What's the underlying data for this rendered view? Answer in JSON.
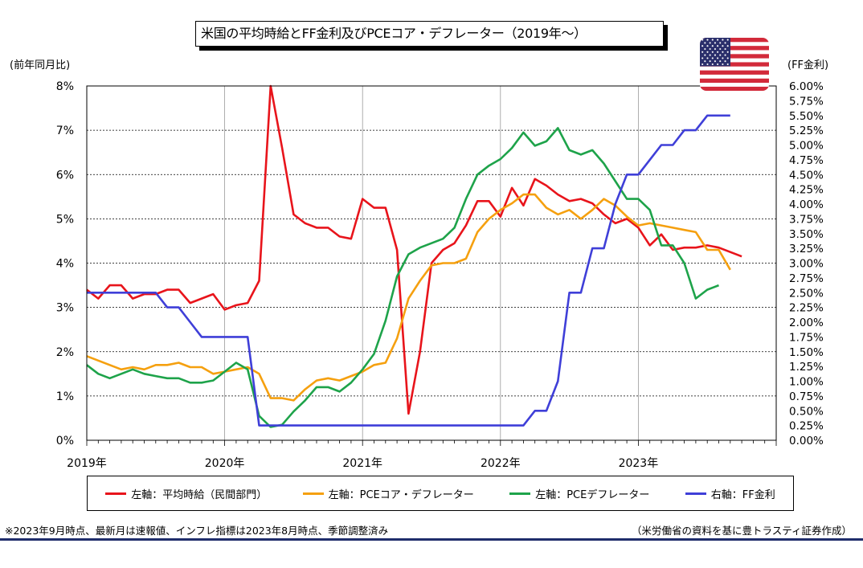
{
  "title": "米国の平均時給とFF金利及びPCEコア・デフレーター（2019年～）",
  "left_axis_unit": "(前年同月比)",
  "right_axis_unit": "(FF金利)",
  "flag_icon": "us-flag-icon",
  "footnote_left": "※2023年9月時点、最新月は速報値、インフレ指標は2023年8月時点、季節調整済み",
  "footnote_right": "（米労働省の資料を基に豊トラスティ証券作成）",
  "chart_data": {
    "type": "line",
    "title": "米国の平均時給とFF金利及びPCEコア・デフレーター（2019年～）",
    "x_labels": [
      "2019年",
      "2020年",
      "2021年",
      "2022年",
      "2023年"
    ],
    "x_start": "2019-01",
    "x_months": 60,
    "grid": true,
    "legend_position": "bottom",
    "left_axis": {
      "label": "(前年同月比)",
      "min": 0,
      "max": 8,
      "step": 1,
      "tick_labels": [
        "0%",
        "1%",
        "2%",
        "3%",
        "4%",
        "5%",
        "6%",
        "7%",
        "8%"
      ]
    },
    "right_axis": {
      "label": "(FF金利)",
      "min": 0,
      "max": 6,
      "step": 0.25,
      "tick_labels": [
        "0.00%",
        "0.25%",
        "0.50%",
        "0.75%",
        "1.00%",
        "1.25%",
        "1.50%",
        "1.75%",
        "2.00%",
        "2.25%",
        "2.50%",
        "2.75%",
        "3.00%",
        "3.25%",
        "3.50%",
        "3.75%",
        "4.00%",
        "4.25%",
        "4.50%",
        "4.75%",
        "5.00%",
        "5.25%",
        "5.50%",
        "5.75%",
        "6.00%"
      ]
    },
    "series": [
      {
        "name": "左軸：平均時給（民間部門）",
        "axis": "left",
        "color": "#e8141b",
        "values": [
          3.4,
          3.2,
          3.5,
          3.5,
          3.2,
          3.3,
          3.3,
          3.4,
          3.4,
          3.1,
          3.2,
          3.3,
          2.95,
          3.05,
          3.1,
          3.6,
          8.0,
          6.6,
          5.1,
          4.9,
          4.8,
          4.8,
          4.6,
          4.55,
          5.45,
          5.25,
          5.25,
          4.3,
          0.6,
          2.0,
          4.0,
          4.3,
          4.45,
          4.85,
          5.4,
          5.4,
          5.05,
          5.7,
          5.3,
          5.9,
          5.75,
          5.55,
          5.4,
          5.45,
          5.35,
          5.1,
          4.9,
          5.0,
          4.8,
          4.4,
          4.65,
          4.3,
          4.35,
          4.35,
          4.4,
          4.35,
          4.25,
          4.15,
          null,
          null
        ]
      },
      {
        "name": "左軸：PCEコア・デフレーター",
        "axis": "left",
        "color": "#f5a00f",
        "values": [
          1.9,
          1.8,
          1.7,
          1.6,
          1.65,
          1.6,
          1.7,
          1.7,
          1.75,
          1.65,
          1.65,
          1.5,
          1.55,
          1.6,
          1.65,
          1.5,
          0.95,
          0.95,
          0.9,
          1.15,
          1.35,
          1.4,
          1.35,
          1.45,
          1.55,
          1.7,
          1.75,
          2.3,
          3.2,
          3.6,
          3.95,
          4.0,
          4.0,
          4.1,
          4.7,
          5.0,
          5.2,
          5.35,
          5.55,
          5.55,
          5.25,
          5.1,
          5.2,
          5.0,
          5.2,
          5.45,
          5.3,
          5.05,
          4.85,
          4.9,
          4.85,
          4.8,
          4.75,
          4.7,
          4.3,
          4.3,
          3.85,
          null,
          null,
          null
        ]
      },
      {
        "name": "左軸：PCEデフレーター",
        "axis": "left",
        "color": "#1ea34a",
        "values": [
          1.7,
          1.5,
          1.4,
          1.5,
          1.6,
          1.5,
          1.45,
          1.4,
          1.4,
          1.3,
          1.3,
          1.35,
          1.55,
          1.75,
          1.6,
          0.55,
          0.3,
          0.35,
          0.65,
          0.9,
          1.2,
          1.2,
          1.1,
          1.3,
          1.6,
          1.95,
          2.7,
          3.7,
          4.2,
          4.35,
          4.45,
          4.55,
          4.8,
          5.45,
          6.0,
          6.2,
          6.35,
          6.6,
          6.95,
          6.65,
          6.75,
          7.05,
          6.55,
          6.45,
          6.55,
          6.25,
          5.85,
          5.45,
          5.45,
          5.2,
          4.4,
          4.4,
          4.0,
          3.2,
          3.4,
          3.5,
          null,
          null,
          null,
          null
        ]
      },
      {
        "name": "右軸：FF金利",
        "axis": "right",
        "color": "#3f3fd8",
        "values": [
          2.5,
          2.5,
          2.5,
          2.5,
          2.5,
          2.5,
          2.5,
          2.25,
          2.25,
          2.0,
          1.75,
          1.75,
          1.75,
          1.75,
          1.75,
          0.25,
          0.25,
          0.25,
          0.25,
          0.25,
          0.25,
          0.25,
          0.25,
          0.25,
          0.25,
          0.25,
          0.25,
          0.25,
          0.25,
          0.25,
          0.25,
          0.25,
          0.25,
          0.25,
          0.25,
          0.25,
          0.25,
          0.25,
          0.25,
          0.5,
          0.5,
          1.0,
          2.5,
          2.5,
          3.25,
          3.25,
          4.0,
          4.5,
          4.5,
          4.75,
          5.0,
          5.0,
          5.25,
          5.25,
          5.5,
          5.5,
          5.5,
          null,
          null,
          null
        ]
      }
    ]
  },
  "legend": [
    {
      "label": "左軸：平均時給（民間部門）",
      "color": "#e8141b"
    },
    {
      "label": "左軸：PCEコア・デフレーター",
      "color": "#f5a00f"
    },
    {
      "label": "左軸：PCEデフレーター",
      "color": "#1ea34a"
    },
    {
      "label": "右軸：FF金利",
      "color": "#3f3fd8"
    }
  ]
}
